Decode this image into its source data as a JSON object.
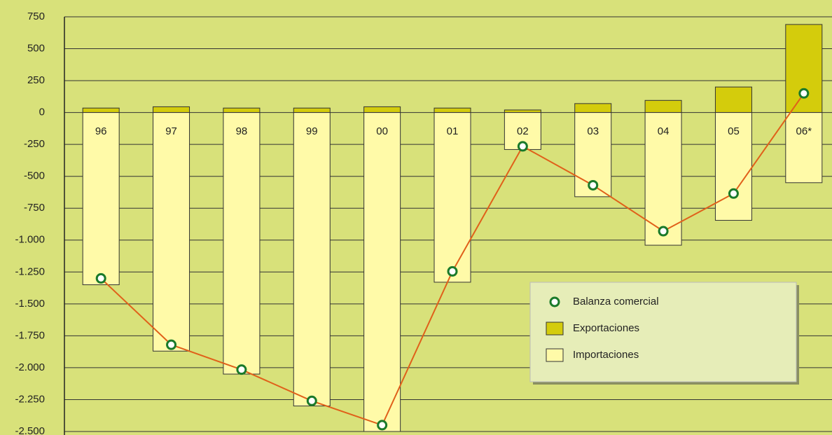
{
  "chart_data": {
    "type": "bar",
    "categories": [
      "96",
      "97",
      "98",
      "99",
      "00",
      "01",
      "02",
      "03",
      "04",
      "05",
      "06*"
    ],
    "series": [
      {
        "name": "Balanza comercial",
        "type": "line",
        "color": "#e0601a",
        "marker_color": "#1a7a2a",
        "values": [
          -1300,
          -1820,
          -2015,
          -2260,
          -2450,
          -1245,
          -265,
          -570,
          -930,
          -635,
          150
        ]
      },
      {
        "name": "Exportaciones",
        "type": "bar",
        "color": "#d4cc0c",
        "values": [
          35,
          45,
          35,
          35,
          45,
          35,
          20,
          70,
          95,
          200,
          690
        ]
      },
      {
        "name": "Importaciones",
        "type": "bar",
        "color": "#fffaa8",
        "values": [
          -1350,
          -1870,
          -2050,
          -2300,
          -2500,
          -1330,
          -290,
          -660,
          -1040,
          -845,
          -550
        ]
      }
    ],
    "ylim": [
      -2500,
      750
    ],
    "yticks": [
      750,
      500,
      250,
      0,
      -250,
      -500,
      -750,
      {
        "value": -1000,
        "label": "-1.000"
      },
      {
        "value": -1250,
        "label": "-1.250"
      },
      {
        "value": -1500,
        "label": "-1.500"
      },
      {
        "value": -1750,
        "label": "-1.750"
      },
      {
        "value": -2000,
        "label": "-2.000"
      },
      {
        "value": -2250,
        "label": "-2.250"
      },
      {
        "value": -2500,
        "label": "-2.500"
      }
    ],
    "grid": true
  }
}
